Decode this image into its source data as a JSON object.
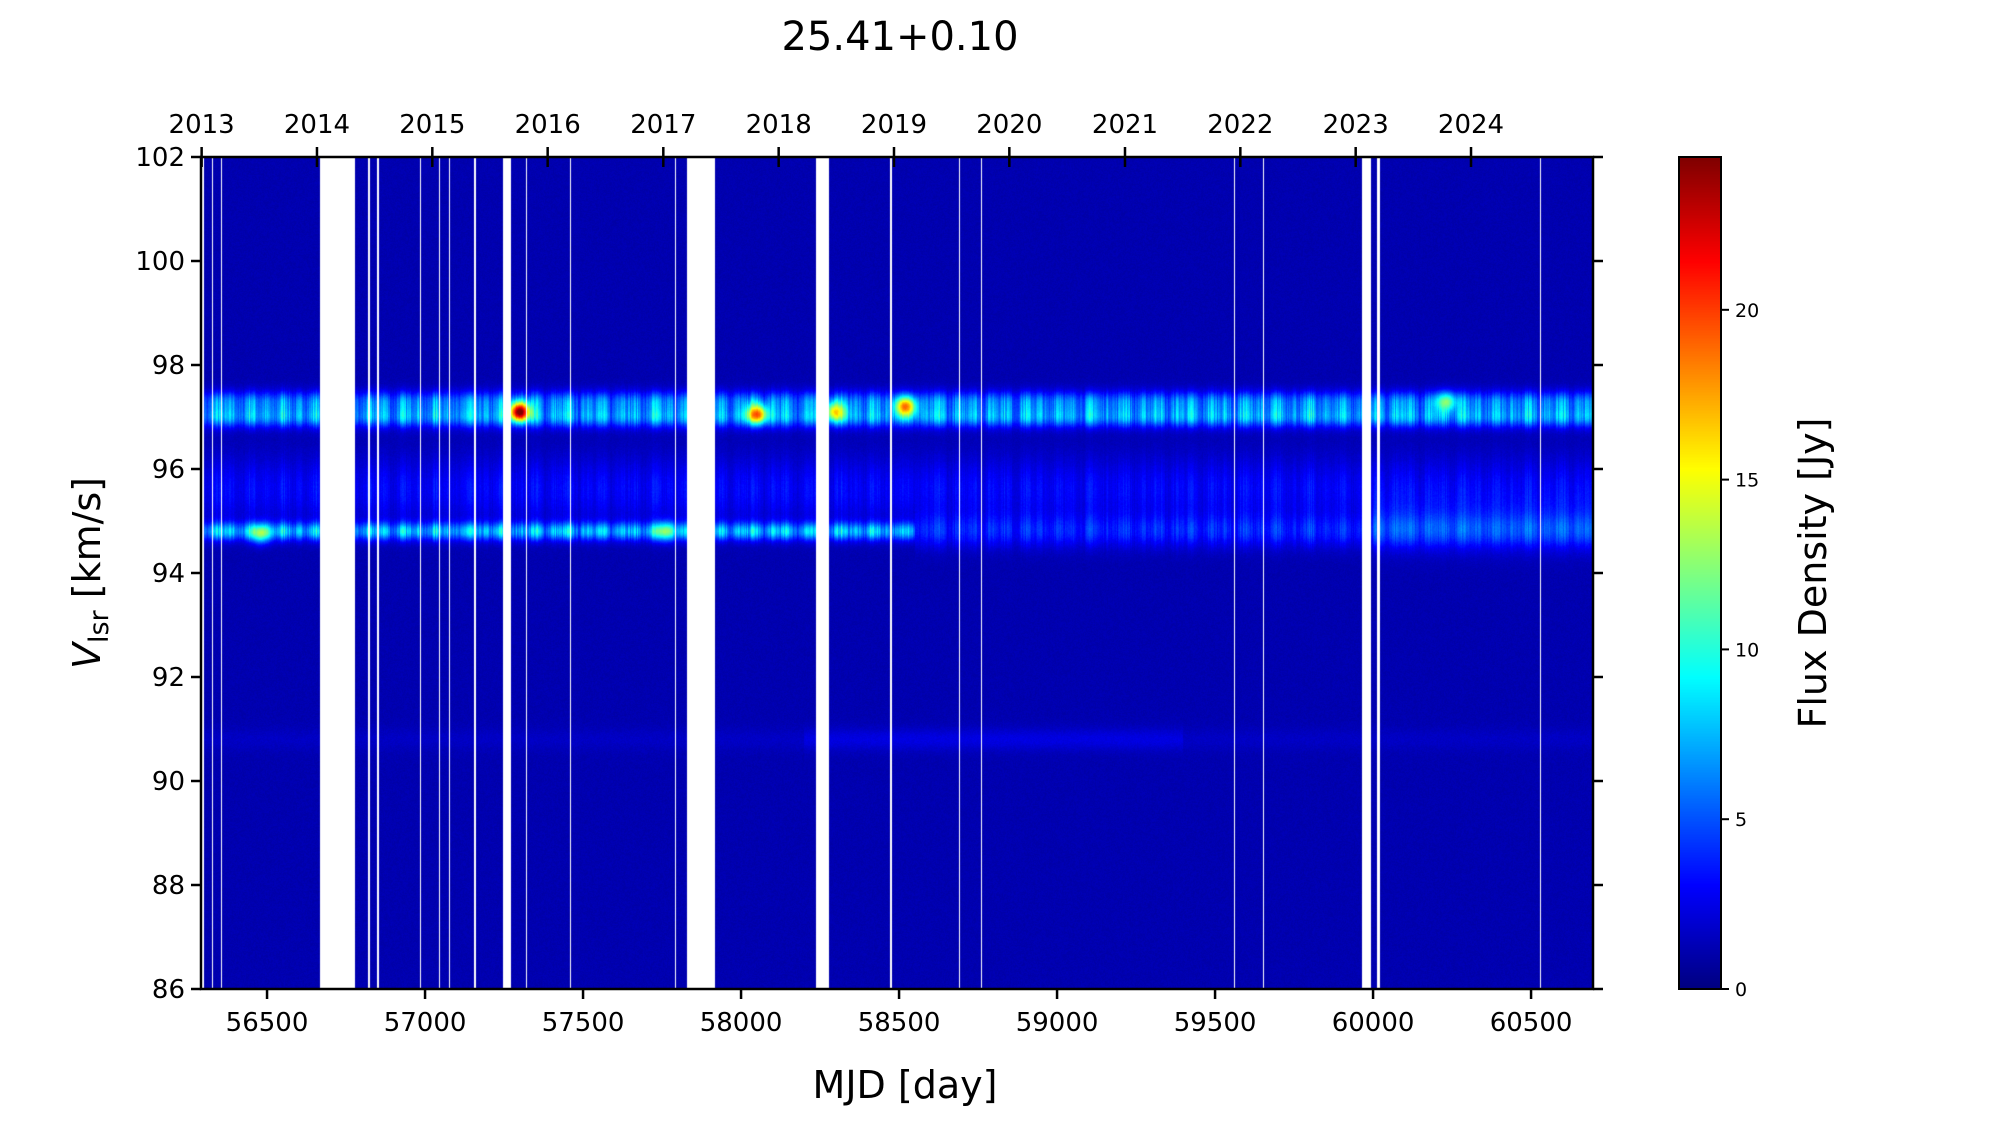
{
  "chart_data": {
    "type": "heatmap",
    "title": "25.41+0.10",
    "xlabel": "MJD [day]",
    "ylabel_main": "V",
    "ylabel_sub": "lsr",
    "ylabel_unit": " [km/s]",
    "xlim": [
      56291,
      60696
    ],
    "ylim": [
      86,
      102
    ],
    "x_ticks": [
      56500,
      57000,
      57500,
      58000,
      58500,
      59000,
      59500,
      60000,
      60500
    ],
    "y_ticks": [
      86,
      88,
      90,
      92,
      94,
      96,
      98,
      100,
      102
    ],
    "top_axis_years": [
      {
        "label": "2013",
        "mjd": 56293
      },
      {
        "label": "2014",
        "mjd": 56658
      },
      {
        "label": "2015",
        "mjd": 57023
      },
      {
        "label": "2016",
        "mjd": 57388
      },
      {
        "label": "2017",
        "mjd": 57754
      },
      {
        "label": "2018",
        "mjd": 58119
      },
      {
        "label": "2019",
        "mjd": 58484
      },
      {
        "label": "2020",
        "mjd": 58849
      },
      {
        "label": "2021",
        "mjd": 59215
      },
      {
        "label": "2022",
        "mjd": 59580
      },
      {
        "label": "2023",
        "mjd": 59945
      },
      {
        "label": "2024",
        "mjd": 60310
      }
    ],
    "colorbar": {
      "label": "Flux Density [Jy]",
      "ticks": [
        0,
        5,
        10,
        15,
        20
      ],
      "range": [
        0,
        24.5
      ],
      "colormap": "jet"
    },
    "data_gaps_mjd": [
      [
        56291,
        56300
      ],
      [
        56325,
        56328
      ],
      [
        56355,
        56357
      ],
      [
        56668,
        56778
      ],
      [
        56820,
        56826
      ],
      [
        56848,
        56854
      ],
      [
        56935,
        56938
      ],
      [
        56985,
        56988
      ],
      [
        57045,
        57048
      ],
      [
        57075,
        57078
      ],
      [
        57155,
        57160
      ],
      [
        57185,
        57188
      ],
      [
        57248,
        57272
      ],
      [
        57320,
        57322
      ],
      [
        57460,
        57463
      ],
      [
        57790,
        57793
      ],
      [
        57829,
        57918
      ],
      [
        58238,
        58279
      ],
      [
        58470,
        58478
      ],
      [
        58690,
        58692
      ],
      [
        58760,
        58762
      ],
      [
        58800,
        58802
      ],
      [
        59560,
        59564
      ],
      [
        59652,
        59655
      ],
      [
        59965,
        59995
      ],
      [
        60013,
        60022
      ],
      [
        60528,
        60532
      ]
    ],
    "emission_components": [
      {
        "velocity": 97.1,
        "typical_flux": 7
      },
      {
        "velocity": 94.8,
        "typical_flux": 7
      },
      {
        "velocity": 95.6,
        "typical_flux": 2
      },
      {
        "velocity": 90.8,
        "typical_flux": 1
      }
    ],
    "flares": [
      {
        "mjd": 57300,
        "velocity": 97.1,
        "peak_flux": 24
      },
      {
        "mjd": 58050,
        "velocity": 97.05,
        "peak_flux": 18
      },
      {
        "mjd": 58300,
        "velocity": 97.1,
        "peak_flux": 15
      },
      {
        "mjd": 58520,
        "velocity": 97.2,
        "peak_flux": 18
      },
      {
        "mjd": 60230,
        "velocity": 97.3,
        "peak_flux": 12
      },
      {
        "mjd": 56480,
        "velocity": 94.75,
        "peak_flux": 12
      },
      {
        "mjd": 57760,
        "velocity": 94.8,
        "peak_flux": 11
      }
    ]
  }
}
